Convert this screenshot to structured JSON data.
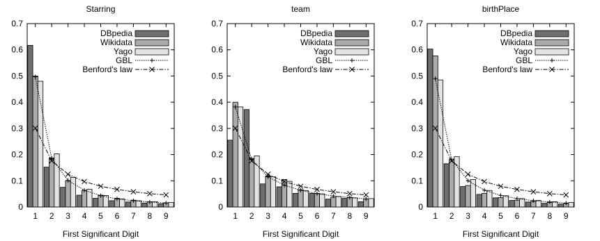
{
  "chart_data": [
    {
      "type": "bar",
      "title": "Starring",
      "xlabel": "First Significant Digit",
      "ylabel": "",
      "ylim": [
        0,
        0.7
      ],
      "yticks": [
        "0",
        "0.1",
        "0.2",
        "0.3",
        "0.4",
        "0.5",
        "0.6",
        "0.7"
      ],
      "categories": [
        "1",
        "2",
        "3",
        "4",
        "5",
        "6",
        "7",
        "8",
        "9"
      ],
      "series": [
        {
          "name": "DBpedia",
          "kind": "bar",
          "color": "#6e6e6e",
          "values": [
            0.617,
            0.152,
            0.075,
            0.045,
            0.033,
            0.024,
            0.019,
            0.015,
            0.012
          ]
        },
        {
          "name": "Wikidata",
          "kind": "bar",
          "color": "#ababab",
          "values": [
            0.5,
            0.187,
            0.1,
            0.063,
            0.045,
            0.033,
            0.026,
            0.02,
            0.016
          ]
        },
        {
          "name": "Yago",
          "kind": "bar",
          "color": "#e3e3e3",
          "values": [
            0.48,
            0.203,
            0.113,
            0.068,
            0.044,
            0.031,
            0.024,
            0.02,
            0.017
          ]
        },
        {
          "name": "GBL",
          "kind": "line-plus",
          "values": [
            0.497,
            0.186,
            0.101,
            0.064,
            0.043,
            0.031,
            0.024,
            0.019,
            0.015
          ]
        },
        {
          "name": "Benford's law",
          "kind": "line-cross",
          "values": [
            0.301,
            0.176,
            0.125,
            0.097,
            0.079,
            0.067,
            0.058,
            0.051,
            0.046
          ]
        }
      ]
    },
    {
      "type": "bar",
      "title": "team",
      "xlabel": "First Significant Digit",
      "ylabel": "",
      "ylim": [
        0,
        0.7
      ],
      "yticks": [
        "0",
        "0.1",
        "0.2",
        "0.3",
        "0.4",
        "0.5",
        "0.6",
        "0.7"
      ],
      "categories": [
        "1",
        "2",
        "3",
        "4",
        "5",
        "6",
        "7",
        "8",
        "9"
      ],
      "series": [
        {
          "name": "DBpedia",
          "kind": "bar",
          "color": "#6e6e6e",
          "values": [
            0.255,
            0.372,
            0.088,
            0.077,
            0.052,
            0.052,
            0.03,
            0.033,
            0.02
          ]
        },
        {
          "name": "Wikidata",
          "kind": "bar",
          "color": "#ababab",
          "values": [
            0.4,
            0.185,
            0.118,
            0.105,
            0.066,
            0.052,
            0.037,
            0.037,
            0.03
          ]
        },
        {
          "name": "Yago",
          "kind": "bar",
          "color": "#e3e3e3",
          "values": [
            0.382,
            0.195,
            0.115,
            0.098,
            0.063,
            0.05,
            0.04,
            0.035,
            0.032
          ]
        },
        {
          "name": "GBL",
          "kind": "line-plus",
          "values": [
            0.382,
            0.182,
            0.115,
            0.083,
            0.064,
            0.051,
            0.042,
            0.036,
            0.031
          ]
        },
        {
          "name": "Benford's law",
          "kind": "line-cross",
          "values": [
            0.301,
            0.176,
            0.125,
            0.097,
            0.079,
            0.067,
            0.058,
            0.051,
            0.046
          ]
        }
      ]
    },
    {
      "type": "bar",
      "title": "birthPlace",
      "xlabel": "First Significant Digit",
      "ylabel": "",
      "ylim": [
        0,
        0.7
      ],
      "yticks": [
        "0",
        "0.1",
        "0.2",
        "0.3",
        "0.4",
        "0.5",
        "0.6",
        "0.7"
      ],
      "categories": [
        "1",
        "2",
        "3",
        "4",
        "5",
        "6",
        "7",
        "8",
        "9"
      ],
      "series": [
        {
          "name": "DBpedia",
          "kind": "bar",
          "color": "#6e6e6e",
          "values": [
            0.603,
            0.165,
            0.078,
            0.048,
            0.035,
            0.025,
            0.019,
            0.014,
            0.011
          ]
        },
        {
          "name": "Wikidata",
          "kind": "bar",
          "color": "#ababab",
          "values": [
            0.577,
            0.18,
            0.082,
            0.052,
            0.036,
            0.026,
            0.021,
            0.017,
            0.013
          ]
        },
        {
          "name": "Yago",
          "kind": "bar",
          "color": "#e3e3e3",
          "values": [
            0.485,
            0.192,
            0.105,
            0.063,
            0.043,
            0.032,
            0.025,
            0.02,
            0.017
          ]
        },
        {
          "name": "GBL",
          "kind": "line-plus",
          "values": [
            0.49,
            0.18,
            0.1,
            0.064,
            0.044,
            0.032,
            0.024,
            0.019,
            0.015
          ]
        },
        {
          "name": "Benford's law",
          "kind": "line-cross",
          "values": [
            0.301,
            0.176,
            0.125,
            0.097,
            0.079,
            0.067,
            0.058,
            0.051,
            0.046
          ]
        }
      ]
    }
  ]
}
